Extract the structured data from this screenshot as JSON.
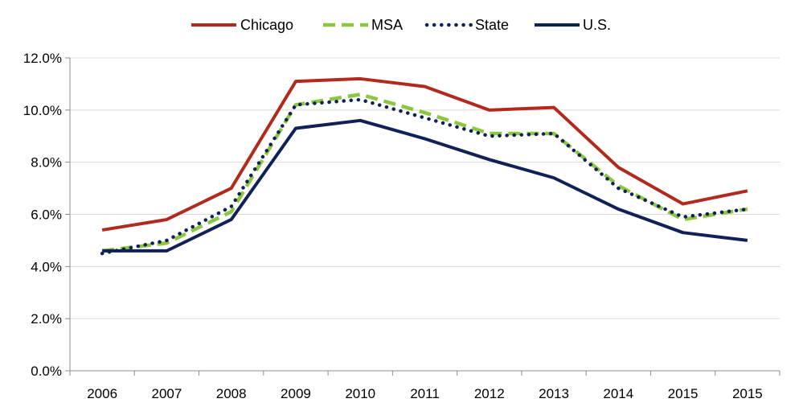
{
  "chart_data": {
    "type": "line",
    "title": "",
    "xlabel": "",
    "ylabel": "",
    "categories": [
      "2006",
      "2007",
      "2008",
      "2009",
      "2010",
      "2011",
      "2012",
      "2013",
      "2014",
      "2015",
      "2015"
    ],
    "ylim": [
      0,
      12
    ],
    "yticks": [
      0,
      2,
      4,
      6,
      8,
      10,
      12
    ],
    "ytick_labels": [
      "0.0%",
      "2.0%",
      "4.0%",
      "6.0%",
      "8.0%",
      "10.0%",
      "12.0%"
    ],
    "grid": true,
    "legend_position": "top-center",
    "series": [
      {
        "name": "Chicago",
        "color": "#b22a1e",
        "style": "solid",
        "values": [
          5.4,
          5.8,
          7.0,
          11.1,
          11.2,
          10.9,
          10.0,
          10.1,
          7.8,
          6.4,
          6.9
        ]
      },
      {
        "name": "MSA",
        "color": "#8dc63f",
        "style": "dashed",
        "values": [
          4.6,
          4.9,
          6.1,
          10.2,
          10.6,
          9.9,
          9.1,
          9.1,
          7.1,
          5.8,
          6.2
        ]
      },
      {
        "name": "State",
        "color": "#0f2156",
        "style": "dotted",
        "values": [
          4.5,
          5.0,
          6.3,
          10.2,
          10.4,
          9.7,
          9.0,
          9.1,
          7.0,
          5.9,
          6.2
        ]
      },
      {
        "name": "U.S.",
        "color": "#0f2156",
        "style": "solid",
        "values": [
          4.6,
          4.6,
          5.8,
          9.3,
          9.6,
          8.9,
          8.1,
          7.4,
          6.2,
          5.3,
          5.0
        ]
      }
    ]
  }
}
